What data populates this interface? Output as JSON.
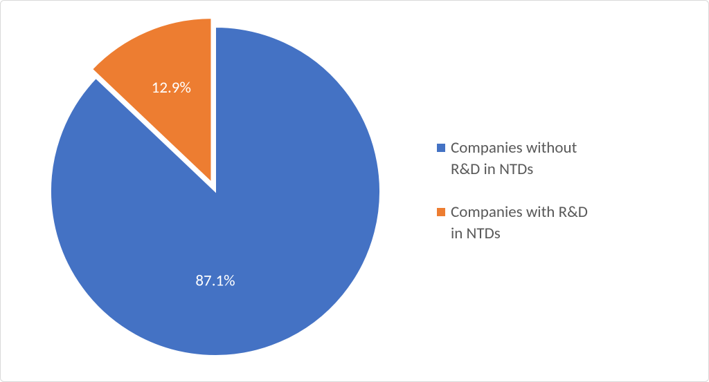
{
  "chart": {
    "type": "pie",
    "background_color": "#ffffff",
    "border_color": "#d9d9d9",
    "radius": 238,
    "explode_gap": 14,
    "slice_separator_color": "#ffffff",
    "slice_separator_width": 2,
    "label_color": "#ffffff",
    "label_fontsize": 23,
    "series": [
      {
        "key": "without",
        "label_lines": [
          "Companies without",
          "R&D in NTDs"
        ],
        "value": 87.1,
        "display": "87.1%",
        "color": "#4472c4",
        "exploded": false
      },
      {
        "key": "with",
        "label_lines": [
          "Companies with R&D",
          "in NTDs"
        ],
        "value": 12.9,
        "display": "12.9%",
        "color": "#ed7d31",
        "exploded": true
      }
    ],
    "legend": {
      "position": "right",
      "text_color": "#595959",
      "text_fontsize": 23,
      "swatch_size": 12
    }
  }
}
